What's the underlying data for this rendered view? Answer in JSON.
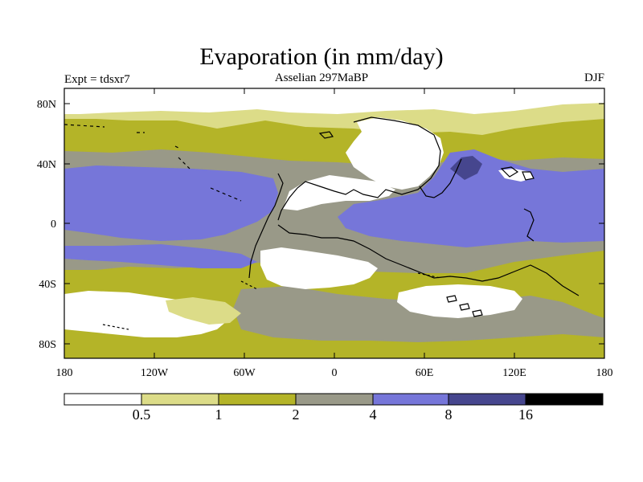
{
  "title": "Evaporation (in mm/day)",
  "experiment": "Expt = tdsxr7",
  "period": "Asselian 297MaBP",
  "season": "DJF",
  "colors": {
    "level_0": "#ffffff",
    "level_1": "#dcdc88",
    "level_2": "#b4b428",
    "level_3": "#999988",
    "level_4": "#7676d9",
    "level_5": "#46468e",
    "level_6": "#000000",
    "coast": "#000000"
  },
  "axes": {
    "lat_labels": [
      "80N",
      "40N",
      "0",
      "40S",
      "80S"
    ],
    "lon_labels": [
      "180",
      "120W",
      "60W",
      "0",
      "60E",
      "120E",
      "180"
    ]
  },
  "colorbar": {
    "labels": [
      "0.5",
      "1",
      "2",
      "4",
      "8",
      "16"
    ]
  },
  "chart_data": {
    "type": "heatmap",
    "title": "Evaporation (in mm/day)",
    "variable": "Evaporation",
    "units": "mm/day",
    "season": "DJF",
    "lon_range": [
      -180,
      180
    ],
    "lat_range": [
      -90,
      90
    ],
    "contour_levels": [
      0.5,
      1,
      2,
      4,
      8,
      16
    ],
    "lon_ticks": [
      -180,
      -120,
      -60,
      0,
      60,
      120,
      180
    ],
    "lat_ticks": [
      80,
      40,
      0,
      -40,
      -80
    ],
    "colorbar_orientation": "horizontal-bottom"
  }
}
